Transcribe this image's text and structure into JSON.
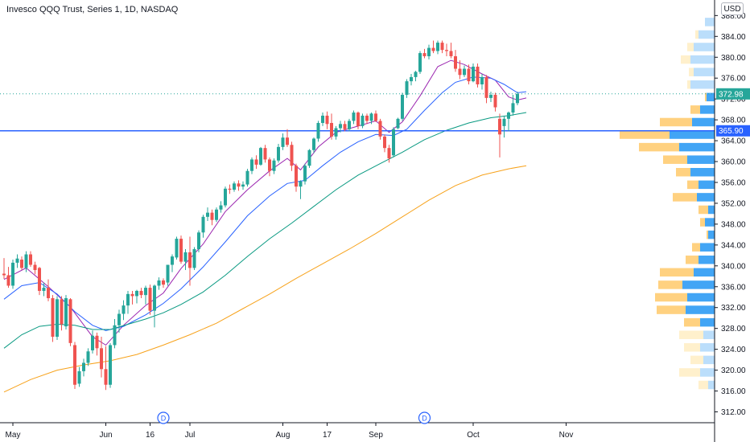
{
  "header": {
    "symbol_title": "Invesco QQQ Trust, Series 1, 1D, NASDAQ",
    "currency_button": "USD"
  },
  "colors": {
    "up": "#26a69a",
    "down": "#ef5350",
    "ema_fast": "#9c27b0",
    "ema_mid": "#2962ff",
    "ema_slow": "#089981",
    "ema_long": "#f7a21b",
    "hline": "#2962ff",
    "vp_up": "#42a5f5",
    "vp_down": "#ffd180"
  },
  "chart_data": {
    "type": "candlestick",
    "symbol": "Invesco QQQ Trust, Series 1, 1D, NASDAQ",
    "y_range": [
      310,
      389
    ],
    "y_ticks": [
      312,
      316,
      320,
      324,
      328,
      332,
      336,
      340,
      344,
      348,
      352,
      356,
      360,
      364,
      368,
      372,
      376,
      380,
      384,
      388
    ],
    "x_ticks": [
      {
        "label": "May",
        "bar": 2
      },
      {
        "label": "Jun",
        "bar": 23
      },
      {
        "label": "16",
        "bar": 33
      },
      {
        "label": "Jul",
        "bar": 42
      },
      {
        "label": "Aug",
        "bar": 63
      },
      {
        "label": "17",
        "bar": 73
      },
      {
        "label": "Sep",
        "bar": 84
      },
      {
        "label": "Oct",
        "bar": 106
      },
      {
        "label": "Nov",
        "bar": 127
      }
    ],
    "last_price": "372.98",
    "horizontal_line": {
      "value": 365.9,
      "label": "365.90"
    },
    "dividend_markers": [
      {
        "label": "D",
        "bar": 36
      },
      {
        "label": "D",
        "bar": 95
      }
    ],
    "candles": [
      [
        338.5,
        341.5,
        337.5,
        338.2
      ],
      [
        338.2,
        339.8,
        335.8,
        336.2
      ],
      [
        336.2,
        341.2,
        335.6,
        340.6
      ],
      [
        340.6,
        342.2,
        339.6,
        341.4
      ],
      [
        341.2,
        341.8,
        339.2,
        339.6
      ],
      [
        339.6,
        342.8,
        338.8,
        342.2
      ],
      [
        342.2,
        342.8,
        339.8,
        340.2
      ],
      [
        340.2,
        340.8,
        338.4,
        339.2
      ],
      [
        339.6,
        339.8,
        334.4,
        335.2
      ],
      [
        335.2,
        336.8,
        334.2,
        335.8
      ],
      [
        335.8,
        337.4,
        333.2,
        333.8
      ],
      [
        333.8,
        334.4,
        325.4,
        326.4
      ],
      [
        326.4,
        334.2,
        325.8,
        333.6
      ],
      [
        333.6,
        334.2,
        327.6,
        328.8
      ],
      [
        328.4,
        334.4,
        327.8,
        333.8
      ],
      [
        333.6,
        333.8,
        324.6,
        325.2
      ],
      [
        324.8,
        325.4,
        316.4,
        317.2
      ],
      [
        317.4,
        320.6,
        316.8,
        319.8
      ],
      [
        319.8,
        322.2,
        318.8,
        321.4
      ],
      [
        321.4,
        324.2,
        320.8,
        323.6
      ],
      [
        323.8,
        327.6,
        323.2,
        326.6
      ],
      [
        326.6,
        327.2,
        322.8,
        324.2
      ],
      [
        324.2,
        326.4,
        318.6,
        320.2
      ],
      [
        320.2,
        324.6,
        316.2,
        317.2
      ],
      [
        317.2,
        325.2,
        316.6,
        324.8
      ],
      [
        324.8,
        329.8,
        324.2,
        328.6
      ],
      [
        328.6,
        331.6,
        327.2,
        330.8
      ],
      [
        330.8,
        333.4,
        329.6,
        332.4
      ],
      [
        332.4,
        335.2,
        330.8,
        334.6
      ],
      [
        334.6,
        335.2,
        332.6,
        334.2
      ],
      [
        334.2,
        335.4,
        332.8,
        335.2
      ],
      [
        335.2,
        335.8,
        333.8,
        334.4
      ],
      [
        334.4,
        336.2,
        332.6,
        335.8
      ],
      [
        335.8,
        336.4,
        330.6,
        331.4
      ],
      [
        331.4,
        336.4,
        328.2,
        336.2
      ],
      [
        336.2,
        337.8,
        335.4,
        337.2
      ],
      [
        337.2,
        337.6,
        335.8,
        336.4
      ],
      [
        336.8,
        340.2,
        336.2,
        340.2
      ],
      [
        340.2,
        342.2,
        338.8,
        341.8
      ],
      [
        341.6,
        345.6,
        341.2,
        345.2
      ],
      [
        345.2,
        345.8,
        340.4,
        340.8
      ],
      [
        340.8,
        343.2,
        339.2,
        342.6
      ],
      [
        342.6,
        345.6,
        336.2,
        339.6
      ],
      [
        339.6,
        343.6,
        339.2,
        343.2
      ],
      [
        343.2,
        346.8,
        342.6,
        346.4
      ],
      [
        346.4,
        349.8,
        345.4,
        349.4
      ],
      [
        349.4,
        351.2,
        348.6,
        350.2
      ],
      [
        350.2,
        350.8,
        347.8,
        348.8
      ],
      [
        348.8,
        351.2,
        348.4,
        350.8
      ],
      [
        350.8,
        352.4,
        350.2,
        351.6
      ],
      [
        351.6,
        355.2,
        351.2,
        354.8
      ],
      [
        354.8,
        355.6,
        353.8,
        354.6
      ],
      [
        354.6,
        356.2,
        354.2,
        355.8
      ],
      [
        355.8,
        356.4,
        354.4,
        355.2
      ],
      [
        355.2,
        356.2,
        354.6,
        355.6
      ],
      [
        355.6,
        358.6,
        355.2,
        358.2
      ],
      [
        358.2,
        360.8,
        357.6,
        360.4
      ],
      [
        360.4,
        361.2,
        358.6,
        359.4
      ],
      [
        359.4,
        362.8,
        359.2,
        362.6
      ],
      [
        362.6,
        363.2,
        359.8,
        360.4
      ],
      [
        360.4,
        360.8,
        357.2,
        358.2
      ],
      [
        358.2,
        360.6,
        357.6,
        360.2
      ],
      [
        360.2,
        363.4,
        359.8,
        362.8
      ],
      [
        362.8,
        365.4,
        362.2,
        364.6
      ],
      [
        364.6,
        366.2,
        362.8,
        363.2
      ],
      [
        363.2,
        363.8,
        358.2,
        359.2
      ],
      [
        359.2,
        359.6,
        354.2,
        355.2
      ],
      [
        355.2,
        356.4,
        352.8,
        356.2
      ],
      [
        356.2,
        359.6,
        355.6,
        359.2
      ],
      [
        359.2,
        362.4,
        358.8,
        362.2
      ],
      [
        362.2,
        364.6,
        361.6,
        364.4
      ],
      [
        364.4,
        367.8,
        363.8,
        367.4
      ],
      [
        367.4,
        369.4,
        366.8,
        368.8
      ],
      [
        368.8,
        369.6,
        366.2,
        367.2
      ],
      [
        367.4,
        369.2,
        364.2,
        364.8
      ],
      [
        364.8,
        366.8,
        364.2,
        366.4
      ],
      [
        366.4,
        367.8,
        365.6,
        367.2
      ],
      [
        367.2,
        367.8,
        365.8,
        366.2
      ],
      [
        366.2,
        368.2,
        365.8,
        367.8
      ],
      [
        367.8,
        369.8,
        367.2,
        369.4
      ],
      [
        369.4,
        369.6,
        366.2,
        366.8
      ],
      [
        366.8,
        369.2,
        366.4,
        368.8
      ],
      [
        368.8,
        369.2,
        367.2,
        367.8
      ],
      [
        367.8,
        369.4,
        367.2,
        369.2
      ],
      [
        369.2,
        369.8,
        367.6,
        367.8
      ],
      [
        367.8,
        368.2,
        364.2,
        364.8
      ],
      [
        364.8,
        365.2,
        361.8,
        362.6
      ],
      [
        362.6,
        363.2,
        359.8,
        360.6
      ],
      [
        361.2,
        366.6,
        360.8,
        366.2
      ],
      [
        366.4,
        368.4,
        366.2,
        368.2
      ],
      [
        368.2,
        373.2,
        367.8,
        372.8
      ],
      [
        372.8,
        375.8,
        372.2,
        375.4
      ],
      [
        375.4,
        376.8,
        374.6,
        376.2
      ],
      [
        376.2,
        377.4,
        375.4,
        377.2
      ],
      [
        377.2,
        381.2,
        376.8,
        380.8
      ],
      [
        380.8,
        381.6,
        379.8,
        380.2
      ],
      [
        380.2,
        382.4,
        379.6,
        381.8
      ],
      [
        381.8,
        383.2,
        380.8,
        381.2
      ],
      [
        381.2,
        383.2,
        380.6,
        382.8
      ],
      [
        382.8,
        383.2,
        380.8,
        381.4
      ],
      [
        381.4,
        382.6,
        380.2,
        381.2
      ],
      [
        381.2,
        382.8,
        379.8,
        380.2
      ],
      [
        380.2,
        381.4,
        377.2,
        377.8
      ],
      [
        377.8,
        379.4,
        375.8,
        376.6
      ],
      [
        376.6,
        378.4,
        376.2,
        377.8
      ],
      [
        377.8,
        378.6,
        374.8,
        375.4
      ],
      [
        375.4,
        378.8,
        375.2,
        378.2
      ],
      [
        378.2,
        378.8,
        374.2,
        374.8
      ],
      [
        374.8,
        376.8,
        373.8,
        376.2
      ],
      [
        376.2,
        376.6,
        371.2,
        372.2
      ],
      [
        372.2,
        373.4,
        371.4,
        372.8
      ],
      [
        372.8,
        373.2,
        369.6,
        370.4
      ],
      [
        368.2,
        369.2,
        360.8,
        365.2
      ],
      [
        366.8,
        368.8,
        364.6,
        368.2
      ],
      [
        368.2,
        369.6,
        365.8,
        369.4
      ],
      [
        369.4,
        372.8,
        368.8,
        371.2
      ],
      [
        371.2,
        373.4,
        370.8,
        372.98
      ]
    ],
    "ema_lines": [
      {
        "id": "ema_fast",
        "pts": [
          [
            0,
            337.4
          ],
          [
            5,
            339.6
          ],
          [
            10,
            336.0
          ],
          [
            15,
            332.1
          ],
          [
            20,
            326.4
          ],
          [
            23,
            324.8
          ],
          [
            27,
            328.6
          ],
          [
            32,
            332.4
          ],
          [
            36,
            334.8
          ],
          [
            40,
            339.5
          ],
          [
            45,
            344.2
          ],
          [
            50,
            350.4
          ],
          [
            55,
            354.6
          ],
          [
            60,
            358.2
          ],
          [
            64,
            360.6
          ],
          [
            67,
            358.4
          ],
          [
            71,
            362.8
          ],
          [
            75,
            365.6
          ],
          [
            80,
            366.8
          ],
          [
            84,
            367.8
          ],
          [
            87,
            365.6
          ],
          [
            90,
            367.6
          ],
          [
            94,
            372.6
          ],
          [
            98,
            378.2
          ],
          [
            101,
            379.4
          ],
          [
            104,
            378.6
          ],
          [
            108,
            376.8
          ],
          [
            111,
            375.6
          ],
          [
            114,
            372.4
          ],
          [
            116,
            371.8
          ],
          [
            118,
            372.2
          ]
        ]
      },
      {
        "id": "ema_mid",
        "pts": [
          [
            0,
            333.6
          ],
          [
            4,
            336.2
          ],
          [
            8,
            336.8
          ],
          [
            12,
            334.6
          ],
          [
            16,
            331.2
          ],
          [
            20,
            328.6
          ],
          [
            23,
            327.6
          ],
          [
            27,
            328.4
          ],
          [
            32,
            330.6
          ],
          [
            36,
            332.8
          ],
          [
            40,
            335.6
          ],
          [
            45,
            339.8
          ],
          [
            50,
            344.6
          ],
          [
            55,
            349.6
          ],
          [
            60,
            353.4
          ],
          [
            64,
            355.8
          ],
          [
            68,
            356.4
          ],
          [
            72,
            359.2
          ],
          [
            76,
            361.8
          ],
          [
            80,
            363.8
          ],
          [
            84,
            365.2
          ],
          [
            88,
            365.0
          ],
          [
            91,
            366.2
          ],
          [
            95,
            369.8
          ],
          [
            99,
            373.2
          ],
          [
            102,
            375.2
          ],
          [
            106,
            376.2
          ],
          [
            110,
            376.0
          ],
          [
            113,
            374.8
          ],
          [
            116,
            373.2
          ],
          [
            118,
            373.4
          ]
        ]
      },
      {
        "id": "ema_slow",
        "pts": [
          [
            0,
            324.2
          ],
          [
            4,
            326.8
          ],
          [
            8,
            328.4
          ],
          [
            12,
            328.8
          ],
          [
            16,
            328.6
          ],
          [
            20,
            327.8
          ],
          [
            24,
            327.8
          ],
          [
            28,
            328.8
          ],
          [
            32,
            329.8
          ],
          [
            36,
            331.0
          ],
          [
            40,
            332.6
          ],
          [
            45,
            335.0
          ],
          [
            50,
            338.2
          ],
          [
            55,
            341.8
          ],
          [
            60,
            345.2
          ],
          [
            65,
            348.2
          ],
          [
            70,
            351.4
          ],
          [
            75,
            354.6
          ],
          [
            80,
            357.4
          ],
          [
            85,
            359.6
          ],
          [
            90,
            361.8
          ],
          [
            95,
            364.2
          ],
          [
            100,
            366.0
          ],
          [
            105,
            367.4
          ],
          [
            110,
            368.4
          ],
          [
            114,
            368.8
          ],
          [
            118,
            369.4
          ]
        ]
      },
      {
        "id": "ema_long",
        "pts": [
          [
            0,
            315.8
          ],
          [
            6,
            318.2
          ],
          [
            12,
            320.0
          ],
          [
            18,
            321.0
          ],
          [
            24,
            321.8
          ],
          [
            30,
            323.0
          ],
          [
            36,
            324.8
          ],
          [
            42,
            326.8
          ],
          [
            48,
            329.0
          ],
          [
            54,
            331.8
          ],
          [
            60,
            334.6
          ],
          [
            66,
            337.6
          ],
          [
            72,
            340.4
          ],
          [
            78,
            343.2
          ],
          [
            84,
            346.2
          ],
          [
            90,
            349.4
          ],
          [
            96,
            352.6
          ],
          [
            102,
            355.4
          ],
          [
            108,
            357.4
          ],
          [
            114,
            358.6
          ],
          [
            118,
            359.2
          ]
        ]
      }
    ],
    "volume_profile": [
      [
        386.8,
        0,
        12,
        "light"
      ],
      [
        384.4,
        4,
        20,
        "light"
      ],
      [
        382.0,
        8,
        26,
        "light"
      ],
      [
        379.6,
        12,
        30,
        "light"
      ],
      [
        377.2,
        6,
        26,
        "light"
      ],
      [
        374.8,
        4,
        30,
        "light"
      ],
      [
        372.4,
        2,
        10,
        "solid"
      ],
      [
        370.0,
        12,
        18,
        "solid"
      ],
      [
        367.6,
        40,
        28,
        "solid"
      ],
      [
        365.2,
        62,
        56,
        "solid"
      ],
      [
        362.8,
        50,
        44,
        "solid"
      ],
      [
        360.4,
        30,
        34,
        "solid"
      ],
      [
        358.0,
        18,
        30,
        "solid"
      ],
      [
        355.6,
        14,
        20,
        "solid"
      ],
      [
        353.2,
        30,
        22,
        "solid"
      ],
      [
        350.8,
        12,
        8,
        "solid"
      ],
      [
        348.4,
        6,
        12,
        "solid"
      ],
      [
        346.0,
        2,
        8,
        "solid"
      ],
      [
        343.6,
        10,
        18,
        "solid"
      ],
      [
        341.2,
        16,
        20,
        "solid"
      ],
      [
        338.8,
        42,
        26,
        "solid"
      ],
      [
        336.4,
        30,
        40,
        "solid"
      ],
      [
        334.0,
        40,
        34,
        "solid"
      ],
      [
        331.6,
        36,
        36,
        "solid"
      ],
      [
        329.2,
        20,
        18,
        "solid"
      ],
      [
        326.8,
        30,
        14,
        "light"
      ],
      [
        324.4,
        20,
        18,
        "light"
      ],
      [
        322.0,
        16,
        14,
        "light"
      ],
      [
        319.6,
        26,
        18,
        "light"
      ],
      [
        317.2,
        12,
        8,
        "light"
      ]
    ]
  }
}
